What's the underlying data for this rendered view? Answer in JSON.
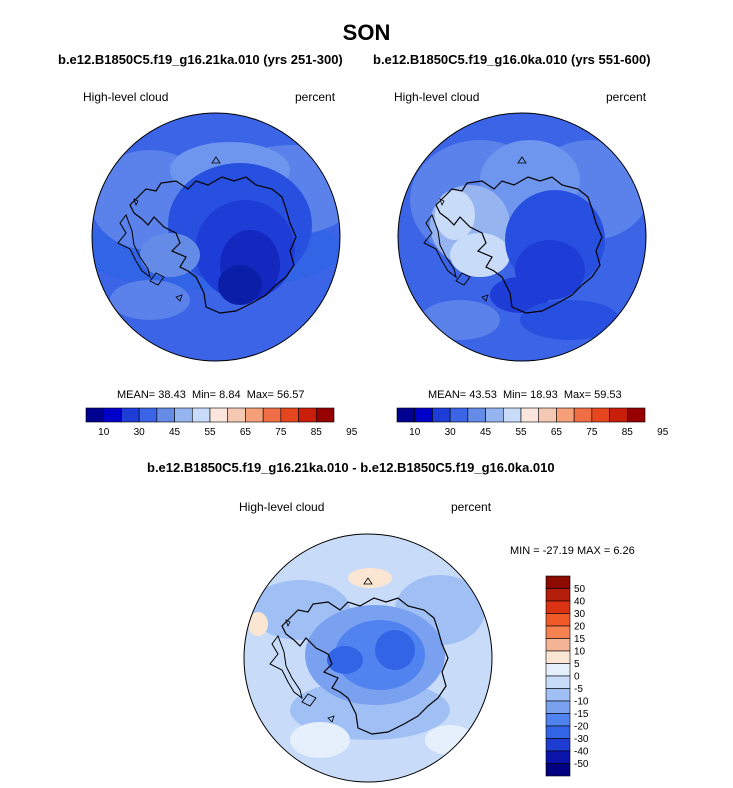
{
  "season_title": "SON",
  "panels": [
    {
      "case_title": "b.e12.B1850C5.f19_g16.21ka.010 (yrs 251-300)",
      "variable": "High-level cloud",
      "units": "percent",
      "stats": {
        "mean_label": "MEAN=",
        "mean": "38.43",
        "min_label": "Min=",
        "min": "8.84",
        "max_label": "Max=",
        "max": "56.57"
      }
    },
    {
      "case_title": "b.e12.B1850C5.f19_g16.0ka.010 (yrs 551-600)",
      "variable": "High-level cloud",
      "units": "percent",
      "stats": {
        "mean_label": "MEAN=",
        "mean": "43.53",
        "min_label": "Min=",
        "min": "18.93",
        "max_label": "Max=",
        "max": "59.53"
      }
    }
  ],
  "diff_panel": {
    "title": "b.e12.B1850C5.f19_g16.21ka.010 - b.e12.B1850C5.f19_g16.0ka.010",
    "variable": "High-level cloud",
    "units": "percent",
    "stats_text": "MIN = -27.19 MAX =  6.26"
  },
  "colorbar_abs": {
    "colors": [
      "#000090",
      "#0000c8",
      "#1e3cd6",
      "#3c64e6",
      "#648ce6",
      "#96b4f0",
      "#c8dcfa",
      "#fae6dc",
      "#f5c8b4",
      "#f5a078",
      "#f06e46",
      "#e6461e",
      "#c81e0a",
      "#960000"
    ],
    "tick_labels": [
      "10",
      "30",
      "45",
      "55",
      "65",
      "75",
      "85",
      "95"
    ]
  },
  "colorbar_diff": {
    "colors": [
      "#000080",
      "#0a14aa",
      "#1e3cd2",
      "#3264e6",
      "#5082f0",
      "#7aa0f0",
      "#a0c0f5",
      "#c8dcfa",
      "#e6f0fc",
      "#fae6d2",
      "#f5b496",
      "#f58250",
      "#f05a28",
      "#dc3214",
      "#b41e0a",
      "#8c0a00"
    ],
    "tick_labels": [
      "50",
      "40",
      "30",
      "20",
      "15",
      "10",
      "5",
      "0",
      "-5",
      "-10",
      "-15",
      "-20",
      "-30",
      "-40",
      "-50"
    ]
  },
  "chart_data": [
    {
      "type": "heatmap",
      "title": "b.e12.B1850C5.f19_g16.21ka.010 (yrs 251-300)",
      "subtitle": "High-level cloud",
      "units": "percent",
      "projection": "south polar stereographic",
      "summary": {
        "mean": 38.43,
        "min": 8.84,
        "max": 56.57
      },
      "levels": [
        10,
        20,
        30,
        40,
        45,
        50,
        55,
        60,
        65,
        70,
        75,
        80,
        85,
        90,
        95
      ],
      "colorbar_ticks": [
        10,
        30,
        45,
        55,
        65,
        75,
        85,
        95
      ]
    },
    {
      "type": "heatmap",
      "title": "b.e12.B1850C5.f19_g16.0ka.010 (yrs 551-600)",
      "subtitle": "High-level cloud",
      "units": "percent",
      "projection": "south polar stereographic",
      "summary": {
        "mean": 43.53,
        "min": 18.93,
        "max": 59.53
      },
      "levels": [
        10,
        20,
        30,
        40,
        45,
        50,
        55,
        60,
        65,
        70,
        75,
        80,
        85,
        90,
        95
      ],
      "colorbar_ticks": [
        10,
        30,
        45,
        55,
        65,
        75,
        85,
        95
      ]
    },
    {
      "type": "heatmap",
      "title": "b.e12.B1850C5.f19_g16.21ka.010 - b.e12.B1850C5.f19_g16.0ka.010",
      "subtitle": "High-level cloud",
      "units": "percent",
      "projection": "south polar stereographic",
      "summary": {
        "min": -27.19,
        "max": 6.26
      },
      "levels": [
        -50,
        -40,
        -30,
        -20,
        -15,
        -10,
        -5,
        0,
        5,
        10,
        15,
        20,
        30,
        40,
        50
      ],
      "colorbar_ticks": [
        50,
        40,
        30,
        20,
        15,
        10,
        5,
        0,
        -5,
        -10,
        -15,
        -20,
        -30,
        -40,
        -50
      ]
    }
  ]
}
